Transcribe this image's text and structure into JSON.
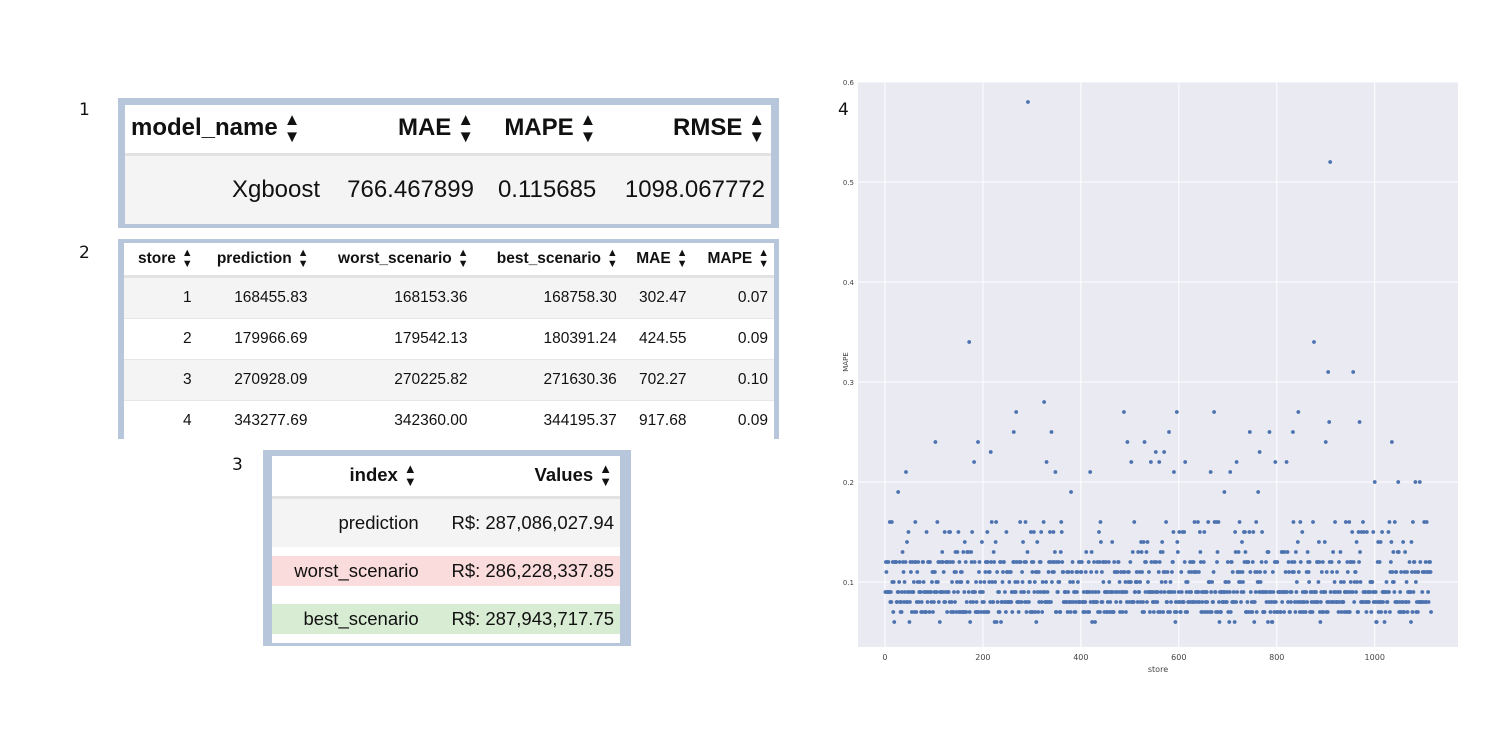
{
  "labels": {
    "t1": "1",
    "t2": "2",
    "t3": "3",
    "chart": "4"
  },
  "summary_table": {
    "headers": [
      "model_name",
      "MAE",
      "MAPE",
      "RMSE"
    ],
    "rows": [
      [
        "Xgboost",
        "766.467899",
        "0.115685",
        "1098.067772"
      ]
    ]
  },
  "store_table": {
    "headers": [
      "store",
      "prediction",
      "worst_scenario",
      "best_scenario",
      "MAE",
      "MAPE"
    ],
    "rows": [
      [
        "1",
        "168455.83",
        "168153.36",
        "168758.30",
        "302.47",
        "0.07"
      ],
      [
        "2",
        "179966.69",
        "179542.13",
        "180391.24",
        "424.55",
        "0.09"
      ],
      [
        "3",
        "270928.09",
        "270225.82",
        "271630.36",
        "702.27",
        "0.10"
      ],
      [
        "4",
        "343277.69",
        "342360.00",
        "344195.37",
        "917.68",
        "0.09"
      ]
    ]
  },
  "scenario_table": {
    "headers": [
      "index",
      "Values"
    ],
    "rows": [
      [
        "prediction",
        "R$: 287,086,027.94"
      ],
      [
        "worst_scenario",
        "R$: 286,228,337.85"
      ],
      [
        "best_scenario",
        "R$: 287,943,717.75"
      ]
    ],
    "highlight_colors": {
      "worst_scenario": "#fbdcdc",
      "best_scenario": "#d8ecd3"
    }
  },
  "sort_icon": "sort-updown-icon",
  "chart_data": {
    "type": "scatter",
    "title": "",
    "xlabel": "store",
    "ylabel": "MAPE",
    "xlim": [
      -55,
      1170
    ],
    "ylim": [
      0.035,
      0.6
    ],
    "xticks": [
      0,
      200,
      400,
      600,
      800,
      1000
    ],
    "yticks": [
      0.1,
      0.2,
      0.3,
      0.4,
      0.5,
      0.6
    ],
    "colors": {
      "background": "#eaeaf2",
      "grid": "#ffffff",
      "point": "#4c72b0"
    },
    "n_points": 1115,
    "outliers": [
      {
        "x": 292,
        "y": 0.58
      },
      {
        "x": 909,
        "y": 0.52
      },
      {
        "x": 172,
        "y": 0.34
      },
      {
        "x": 876,
        "y": 0.34
      },
      {
        "x": 905,
        "y": 0.31
      },
      {
        "x": 956,
        "y": 0.31
      },
      {
        "x": 325,
        "y": 0.28
      },
      {
        "x": 268,
        "y": 0.27
      },
      {
        "x": 488,
        "y": 0.27
      },
      {
        "x": 596,
        "y": 0.27
      },
      {
        "x": 672,
        "y": 0.27
      },
      {
        "x": 844,
        "y": 0.27
      },
      {
        "x": 907,
        "y": 0.26
      },
      {
        "x": 969,
        "y": 0.26
      },
      {
        "x": 263,
        "y": 0.25
      },
      {
        "x": 340,
        "y": 0.25
      },
      {
        "x": 580,
        "y": 0.25
      },
      {
        "x": 745,
        "y": 0.25
      },
      {
        "x": 785,
        "y": 0.25
      },
      {
        "x": 833,
        "y": 0.25
      },
      {
        "x": 103,
        "y": 0.24
      },
      {
        "x": 190,
        "y": 0.24
      },
      {
        "x": 495,
        "y": 0.24
      },
      {
        "x": 530,
        "y": 0.24
      },
      {
        "x": 900,
        "y": 0.24
      },
      {
        "x": 1035,
        "y": 0.24
      },
      {
        "x": 216,
        "y": 0.23
      },
      {
        "x": 553,
        "y": 0.23
      },
      {
        "x": 570,
        "y": 0.23
      },
      {
        "x": 765,
        "y": 0.23
      },
      {
        "x": 182,
        "y": 0.22
      },
      {
        "x": 330,
        "y": 0.22
      },
      {
        "x": 503,
        "y": 0.22
      },
      {
        "x": 543,
        "y": 0.22
      },
      {
        "x": 560,
        "y": 0.22
      },
      {
        "x": 613,
        "y": 0.22
      },
      {
        "x": 718,
        "y": 0.22
      },
      {
        "x": 797,
        "y": 0.22
      },
      {
        "x": 820,
        "y": 0.22
      },
      {
        "x": 43,
        "y": 0.21
      },
      {
        "x": 348,
        "y": 0.21
      },
      {
        "x": 419,
        "y": 0.21
      },
      {
        "x": 665,
        "y": 0.21
      },
      {
        "x": 705,
        "y": 0.21
      },
      {
        "x": 590,
        "y": 0.21
      },
      {
        "x": 27,
        "y": 0.19
      },
      {
        "x": 380,
        "y": 0.19
      },
      {
        "x": 693,
        "y": 0.19
      },
      {
        "x": 762,
        "y": 0.19
      },
      {
        "x": 1000,
        "y": 0.2
      },
      {
        "x": 1048,
        "y": 0.2
      },
      {
        "x": 1083,
        "y": 0.2
      },
      {
        "x": 1092,
        "y": 0.2
      }
    ]
  }
}
